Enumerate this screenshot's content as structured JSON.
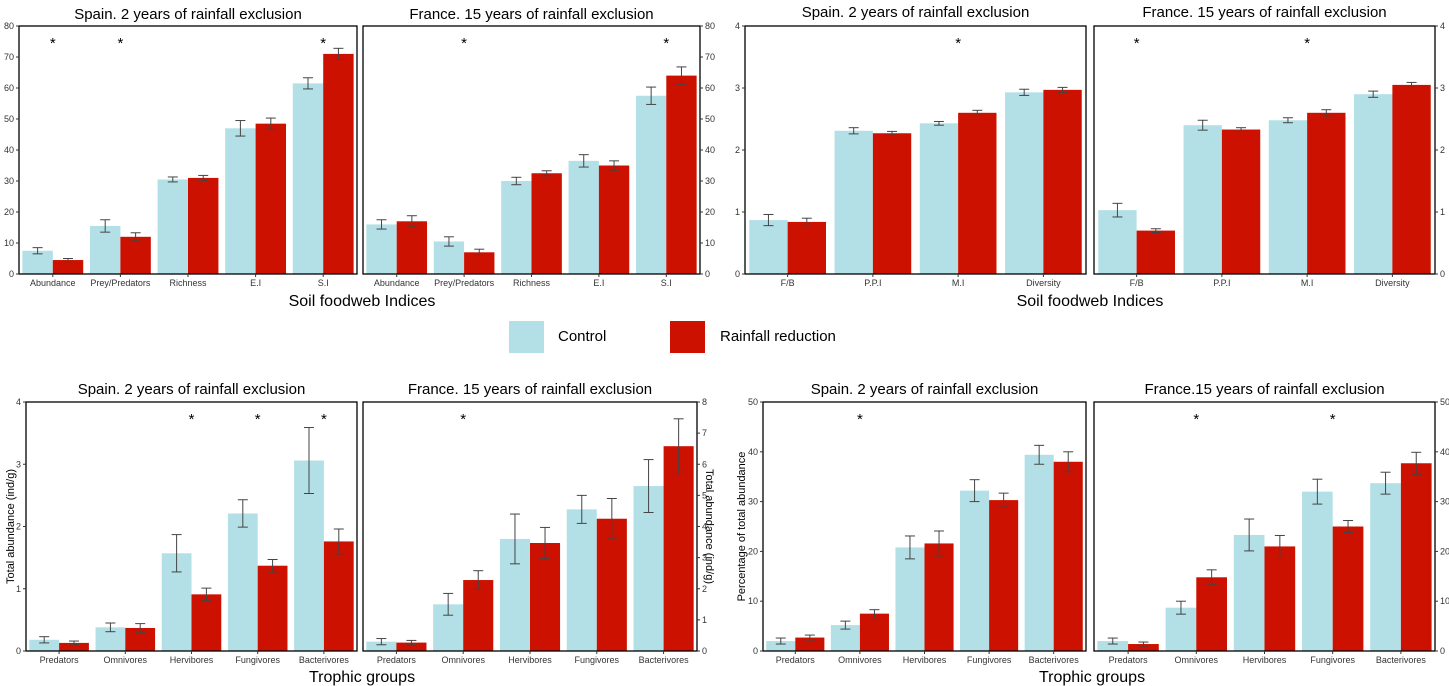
{
  "colors": {
    "control": "#b3e0e6",
    "reduction": "#cc1100",
    "frame": "#000000",
    "errorbar": "#444444"
  },
  "legend": [
    {
      "key": "control",
      "label": "Control"
    },
    {
      "key": "reduction",
      "label": "Rainfall reduction"
    }
  ],
  "chart_data": [
    {
      "type": "bar",
      "title": "Spain. 2 years of rainfall exclusion",
      "categories": [
        "Abundance",
        "Prey/Predators",
        "Richness",
        "E.I",
        "S.I"
      ],
      "ylim": [
        0,
        80
      ],
      "yticks": [
        0,
        10,
        20,
        30,
        40,
        50,
        60,
        70,
        80
      ],
      "series": [
        {
          "name": "Control",
          "values": [
            7.5,
            15.5,
            30.5,
            47,
            61.5
          ],
          "errors": [
            1,
            2,
            0.8,
            2.5,
            1.8
          ]
        },
        {
          "name": "Rainfall reduction",
          "values": [
            4.5,
            12,
            31,
            48.5,
            71
          ],
          "errors": [
            0.5,
            1.3,
            0.8,
            1.8,
            1.8
          ]
        }
      ],
      "significant": [
        0,
        1,
        4
      ]
    },
    {
      "type": "bar",
      "title": "France. 15 years of rainfall exclusion",
      "categories": [
        "Abundance",
        "Prey/Predators",
        "Richness",
        "E.I",
        "S.I"
      ],
      "ylim": [
        0,
        80
      ],
      "yticks": [
        0,
        10,
        20,
        30,
        40,
        50,
        60,
        70,
        80
      ],
      "series": [
        {
          "name": "Control",
          "values": [
            16,
            10.5,
            30,
            36.5,
            57.5
          ],
          "errors": [
            1.5,
            1.5,
            1.2,
            2,
            2.8
          ]
        },
        {
          "name": "Rainfall reduction",
          "values": [
            17,
            7,
            32.5,
            35,
            64
          ],
          "errors": [
            1.8,
            1,
            0.8,
            1.5,
            2.8
          ]
        }
      ],
      "significant": [
        1,
        4
      ]
    },
    {
      "type": "bar",
      "title": "Spain. 2 years of rainfall exclusion",
      "categories": [
        "F/B",
        "P.P.I",
        "M.I",
        "Diversity"
      ],
      "ylim": [
        0,
        4
      ],
      "yticks": [
        0,
        1,
        2,
        3,
        4
      ],
      "series": [
        {
          "name": "Control",
          "values": [
            0.87,
            2.31,
            2.43,
            2.93
          ],
          "errors": [
            0.09,
            0.05,
            0.03,
            0.05
          ]
        },
        {
          "name": "Rainfall reduction",
          "values": [
            0.84,
            2.27,
            2.6,
            2.97
          ],
          "errors": [
            0.06,
            0.03,
            0.04,
            0.04
          ]
        }
      ],
      "significant": [
        2
      ]
    },
    {
      "type": "bar",
      "title": "France. 15 years of rainfall exclusion",
      "categories": [
        "F/B",
        "P.P.I",
        "M.I",
        "Diversity"
      ],
      "ylim": [
        0,
        4
      ],
      "yticks": [
        0,
        1,
        2,
        3,
        4
      ],
      "series": [
        {
          "name": "Control",
          "values": [
            1.03,
            2.4,
            2.48,
            2.9
          ],
          "errors": [
            0.11,
            0.08,
            0.04,
            0.05
          ]
        },
        {
          "name": "Rainfall reduction",
          "values": [
            0.7,
            2.33,
            2.6,
            3.05
          ],
          "errors": [
            0.03,
            0.03,
            0.05,
            0.04
          ]
        }
      ],
      "significant": [
        0,
        2
      ]
    },
    {
      "type": "bar",
      "title": "Spain. 2 years of rainfall exclusion",
      "categories": [
        "Predators",
        "Omnivores",
        "Hervibores",
        "Fungivores",
        "Bacterivores"
      ],
      "ylabel": "Total abundance (ind/g)",
      "ylim": [
        0,
        4
      ],
      "yticks": [
        0,
        1,
        2,
        3,
        4
      ],
      "series": [
        {
          "name": "Control",
          "values": [
            0.18,
            0.38,
            1.57,
            2.21,
            3.06
          ],
          "errors": [
            0.05,
            0.07,
            0.3,
            0.22,
            0.53
          ]
        },
        {
          "name": "Rainfall reduction",
          "values": [
            0.13,
            0.37,
            0.91,
            1.37,
            1.76
          ],
          "errors": [
            0.03,
            0.07,
            0.1,
            0.1,
            0.2
          ]
        }
      ],
      "significant": [
        2,
        3,
        4
      ]
    },
    {
      "type": "bar",
      "title": "France. 15 years of rainfall exclusion",
      "categories": [
        "Predators",
        "Omnivores",
        "Hervibores",
        "Fungivores",
        "Bacterivores"
      ],
      "ylabel": "Total abundance (ind/g)",
      "ylim": [
        0,
        8
      ],
      "yticks": [
        0,
        1,
        2,
        3,
        4,
        5,
        6,
        7,
        8
      ],
      "series": [
        {
          "name": "Control",
          "values": [
            0.3,
            1.5,
            3.6,
            4.55,
            5.3
          ],
          "errors": [
            0.1,
            0.35,
            0.8,
            0.45,
            0.85
          ]
        },
        {
          "name": "Rainfall reduction",
          "values": [
            0.27,
            2.28,
            3.47,
            4.25,
            6.58
          ],
          "errors": [
            0.07,
            0.3,
            0.5,
            0.65,
            0.88
          ]
        }
      ],
      "significant": [
        1
      ]
    },
    {
      "type": "bar",
      "title": "Spain. 2 years of rainfall exclusion",
      "categories": [
        "Predators",
        "Omnivores",
        "Hervibores",
        "Fungivores",
        "Bacterivores"
      ],
      "ylabel": "Percentage of total abundance",
      "ylim": [
        0,
        50
      ],
      "yticks": [
        0,
        10,
        20,
        30,
        40,
        50
      ],
      "series": [
        {
          "name": "Control",
          "values": [
            2,
            5.2,
            20.8,
            32.2,
            39.4
          ],
          "errors": [
            0.6,
            0.8,
            2.3,
            2.2,
            1.9
          ]
        },
        {
          "name": "Rainfall reduction",
          "values": [
            2.7,
            7.5,
            21.6,
            30.3,
            38
          ],
          "errors": [
            0.5,
            0.8,
            2.5,
            1.4,
            2
          ]
        }
      ],
      "significant": [
        1
      ]
    },
    {
      "type": "bar",
      "title": "France.15 years of rainfall exclusion",
      "categories": [
        "Predators",
        "Omnivores",
        "Hervibores",
        "Fungivores",
        "Bacterivores"
      ],
      "ylim": [
        0,
        50
      ],
      "yticks": [
        0,
        10,
        20,
        30,
        40,
        50
      ],
      "series": [
        {
          "name": "Control",
          "values": [
            2,
            8.7,
            23.3,
            32,
            33.7
          ],
          "errors": [
            0.6,
            1.3,
            3.2,
            2.5,
            2.2
          ]
        },
        {
          "name": "Rainfall reduction",
          "values": [
            1.4,
            14.8,
            21,
            25,
            37.7
          ],
          "errors": [
            0.4,
            1.5,
            2.2,
            1.2,
            2.2
          ]
        }
      ],
      "significant": [
        1,
        3
      ]
    }
  ],
  "xtitles": {
    "top_left": "Soil foodweb Indices",
    "top_right": "Soil foodweb Indices",
    "bottom_left": "Trophic groups",
    "bottom_right": "Trophic groups"
  },
  "significance_marker": "*"
}
